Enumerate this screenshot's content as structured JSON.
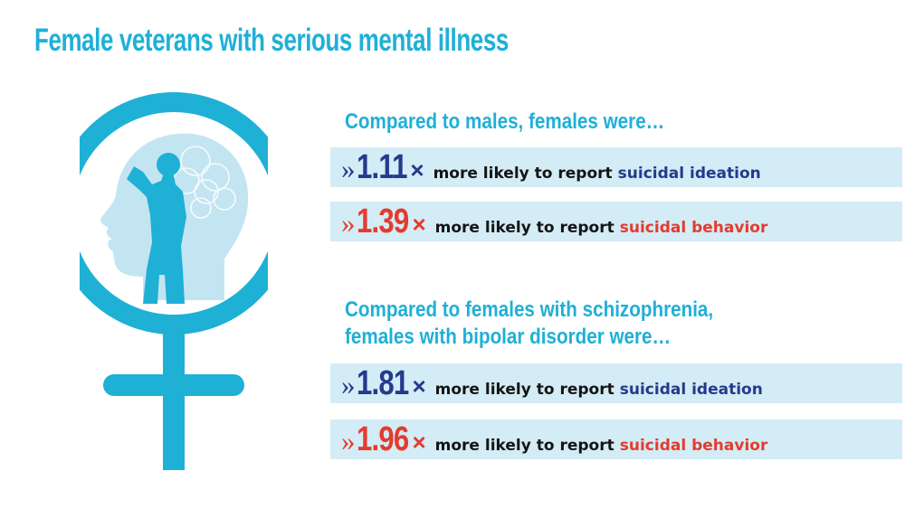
{
  "title": "Female veterans with serious mental illness",
  "sections": [
    {
      "heading_lines": [
        "Compared to males, females were…"
      ],
      "stats": [
        {
          "arrow": "»",
          "multiplier": "1.11",
          "times": "×",
          "phrase": "more likely to report",
          "term": "suicidal ideation",
          "color": "#243a8c"
        },
        {
          "arrow": "»",
          "multiplier": "1.39",
          "times": "×",
          "phrase": "more likely to report",
          "term": "suicidal behavior",
          "color": "#e63a2e"
        }
      ]
    },
    {
      "heading_lines": [
        "Compared to females with schizophrenia,",
        "females with bipolar disorder were…"
      ],
      "stats": [
        {
          "arrow": "»",
          "multiplier": "1.81",
          "times": "×",
          "phrase": "more likely to report",
          "term": "suicidal ideation",
          "color": "#243a8c"
        },
        {
          "arrow": "»",
          "multiplier": "1.96",
          "times": "×",
          "phrase": "more likely to report",
          "term": "suicidal behavior",
          "color": "#e63a2e"
        }
      ]
    }
  ],
  "colors": {
    "accent": "#1fb0d6",
    "band": "#d3ecf5",
    "ideation": "#243a8c",
    "behavior": "#e63a2e"
  },
  "icons": [
    "female-symbol-icon",
    "saluting-woman-silhouette",
    "head-profile-icon"
  ]
}
